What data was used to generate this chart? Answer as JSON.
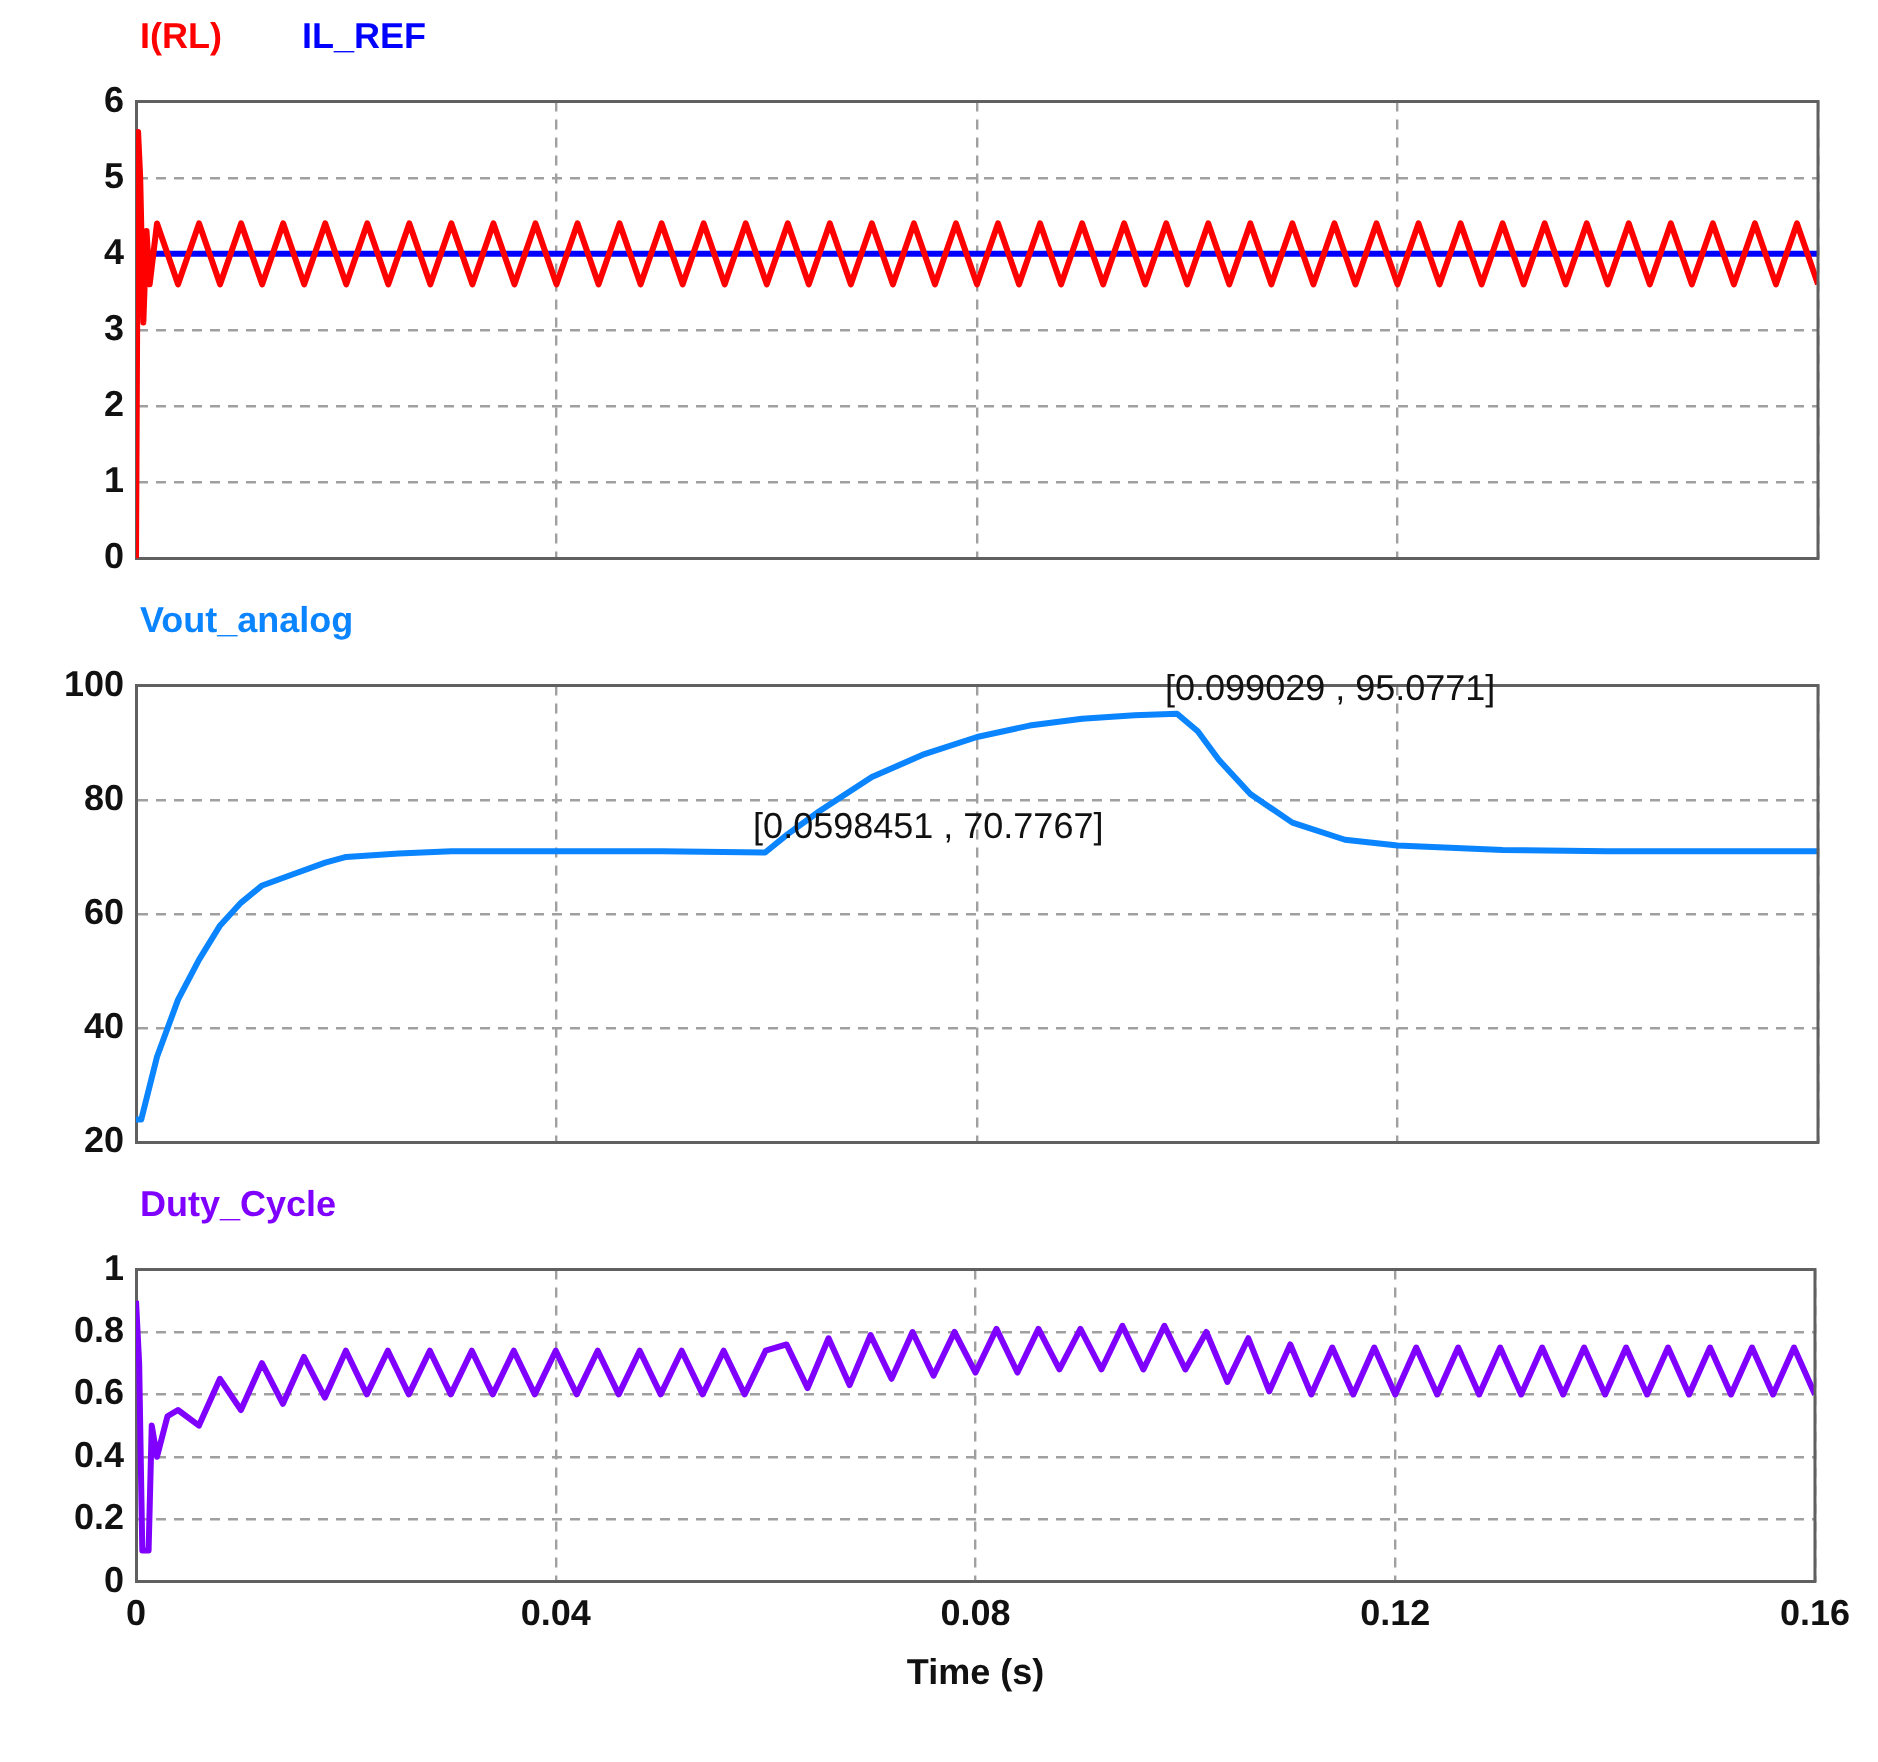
{
  "chart_data": [
    {
      "type": "line",
      "legend": "top left",
      "grid": true,
      "tick_labels": "y",
      "xlim": [
        0,
        0.16
      ],
      "xticks": [
        0,
        0.04,
        0.08,
        0.12,
        0.16
      ],
      "ylim": [
        0,
        6
      ],
      "yticks": [
        0,
        1,
        2,
        3,
        4,
        5,
        6
      ],
      "series": [
        {
          "name": "I(RL)",
          "color": "#ff0000",
          "x": [
            0,
            0.0002,
            0.0004,
            0.0007,
            0.001,
            0.0013,
            0.002,
            0.004,
            0.006,
            0.008,
            0.01,
            0.012,
            0.014,
            0.016,
            0.018,
            0.02,
            0.022,
            0.024,
            0.026,
            0.028,
            0.03,
            0.032,
            0.034,
            0.036,
            0.038,
            0.04,
            0.042,
            0.044,
            0.046,
            0.048,
            0.05,
            0.052,
            0.054,
            0.056,
            0.058,
            0.06,
            0.062,
            0.064,
            0.066,
            0.068,
            0.07,
            0.072,
            0.074,
            0.076,
            0.078,
            0.08,
            0.082,
            0.084,
            0.086,
            0.088,
            0.09,
            0.092,
            0.094,
            0.096,
            0.098,
            0.1,
            0.102,
            0.104,
            0.106,
            0.108,
            0.11,
            0.112,
            0.114,
            0.116,
            0.118,
            0.12,
            0.122,
            0.124,
            0.126,
            0.128,
            0.13,
            0.132,
            0.134,
            0.136,
            0.138,
            0.14,
            0.142,
            0.144,
            0.146,
            0.148,
            0.15,
            0.152,
            0.154,
            0.156,
            0.158,
            0.16
          ],
          "values": [
            0,
            5.6,
            5.0,
            3.1,
            4.3,
            3.6,
            4.4,
            3.6,
            4.4,
            3.6,
            4.4,
            3.6,
            4.4,
            3.6,
            4.4,
            3.6,
            4.4,
            3.6,
            4.4,
            3.6,
            4.4,
            3.6,
            4.4,
            3.6,
            4.4,
            3.6,
            4.4,
            3.6,
            4.4,
            3.6,
            4.4,
            3.6,
            4.4,
            3.6,
            4.4,
            3.6,
            4.4,
            3.6,
            4.4,
            3.6,
            4.4,
            3.6,
            4.4,
            3.6,
            4.4,
            3.6,
            4.4,
            3.6,
            4.4,
            3.6,
            4.4,
            3.6,
            4.4,
            3.6,
            4.4,
            3.6,
            4.4,
            3.6,
            4.4,
            3.6,
            4.4,
            3.6,
            4.4,
            3.6,
            4.4,
            3.6,
            4.4,
            3.6,
            4.4,
            3.6,
            4.4,
            3.6,
            4.4,
            3.6,
            4.4,
            3.6,
            4.4,
            3.6,
            4.4,
            3.6,
            4.4,
            3.6,
            4.4,
            3.6,
            4.4,
            3.6
          ]
        },
        {
          "name": "IL_REF",
          "color": "#0000ff",
          "x": [
            0,
            0.16
          ],
          "values": [
            4,
            4
          ]
        }
      ]
    },
    {
      "type": "line",
      "legend": "top left",
      "grid": true,
      "tick_labels": "y",
      "xlim": [
        0,
        0.16
      ],
      "xticks": [
        0,
        0.04,
        0.08,
        0.12,
        0.16
      ],
      "ylim": [
        20,
        100
      ],
      "yticks": [
        20,
        40,
        60,
        80,
        100
      ],
      "annotations": [
        {
          "text": "[0.0598451 , 70.7767]",
          "x": 0.0598451,
          "y": 70.7767
        },
        {
          "text": "[0.099029 , 95.0771]",
          "x": 0.099029,
          "y": 95.0771
        }
      ],
      "series": [
        {
          "name": "Vout_analog",
          "color": "#0a84ff",
          "x": [
            0,
            0.0005,
            0.002,
            0.004,
            0.006,
            0.008,
            0.01,
            0.012,
            0.015,
            0.018,
            0.02,
            0.025,
            0.03,
            0.04,
            0.05,
            0.0598451,
            0.062,
            0.065,
            0.07,
            0.075,
            0.08,
            0.085,
            0.09,
            0.095,
            0.099029,
            0.101,
            0.103,
            0.106,
            0.11,
            0.115,
            0.12,
            0.13,
            0.14,
            0.15,
            0.16
          ],
          "values": [
            24,
            24,
            35,
            45,
            52,
            58,
            62,
            65,
            67,
            69,
            70,
            70.6,
            71,
            71,
            71,
            70.7767,
            74,
            78,
            84,
            88,
            91,
            93,
            94.2,
            94.8,
            95.0771,
            92,
            87,
            81,
            76,
            73,
            72,
            71.2,
            71,
            71,
            71
          ]
        }
      ]
    },
    {
      "type": "line",
      "legend": "top left",
      "grid": true,
      "xlabel": "Time (s)",
      "xlim": [
        0,
        0.16
      ],
      "xticks": [
        0,
        0.04,
        0.08,
        0.12,
        0.16
      ],
      "ylim": [
        0,
        1
      ],
      "yticks": [
        0,
        0.2,
        0.4,
        0.6,
        0.8,
        1
      ],
      "series": [
        {
          "name": "Duty_Cycle",
          "color": "#8000ff",
          "x": [
            0,
            0.0003,
            0.0006,
            0.0012,
            0.0015,
            0.002,
            0.003,
            0.004,
            0.006,
            0.008,
            0.01,
            0.012,
            0.014,
            0.016,
            0.018,
            0.02,
            0.022,
            0.024,
            0.026,
            0.028,
            0.03,
            0.032,
            0.034,
            0.036,
            0.038,
            0.04,
            0.042,
            0.044,
            0.046,
            0.048,
            0.05,
            0.052,
            0.054,
            0.056,
            0.058,
            0.06,
            0.062,
            0.064,
            0.066,
            0.068,
            0.07,
            0.072,
            0.074,
            0.076,
            0.078,
            0.08,
            0.082,
            0.084,
            0.086,
            0.088,
            0.09,
            0.092,
            0.094,
            0.096,
            0.098,
            0.1,
            0.102,
            0.104,
            0.106,
            0.108,
            0.11,
            0.112,
            0.114,
            0.116,
            0.118,
            0.12,
            0.122,
            0.124,
            0.126,
            0.128,
            0.13,
            0.132,
            0.134,
            0.136,
            0.138,
            0.14,
            0.142,
            0.144,
            0.146,
            0.148,
            0.15,
            0.152,
            0.154,
            0.156,
            0.158,
            0.16
          ],
          "values": [
            0.9,
            0.7,
            0.1,
            0.1,
            0.5,
            0.4,
            0.53,
            0.55,
            0.5,
            0.65,
            0.55,
            0.7,
            0.57,
            0.72,
            0.59,
            0.74,
            0.6,
            0.74,
            0.6,
            0.74,
            0.6,
            0.74,
            0.6,
            0.74,
            0.6,
            0.74,
            0.6,
            0.74,
            0.6,
            0.74,
            0.6,
            0.74,
            0.6,
            0.74,
            0.6,
            0.74,
            0.76,
            0.62,
            0.78,
            0.63,
            0.79,
            0.65,
            0.8,
            0.66,
            0.8,
            0.67,
            0.81,
            0.67,
            0.81,
            0.68,
            0.81,
            0.68,
            0.82,
            0.68,
            0.82,
            0.68,
            0.8,
            0.64,
            0.78,
            0.61,
            0.76,
            0.6,
            0.75,
            0.6,
            0.75,
            0.6,
            0.75,
            0.6,
            0.75,
            0.6,
            0.75,
            0.6,
            0.75,
            0.6,
            0.75,
            0.6,
            0.75,
            0.6,
            0.75,
            0.6,
            0.75,
            0.6,
            0.75,
            0.6,
            0.75,
            0.6
          ]
        }
      ]
    }
  ]
}
